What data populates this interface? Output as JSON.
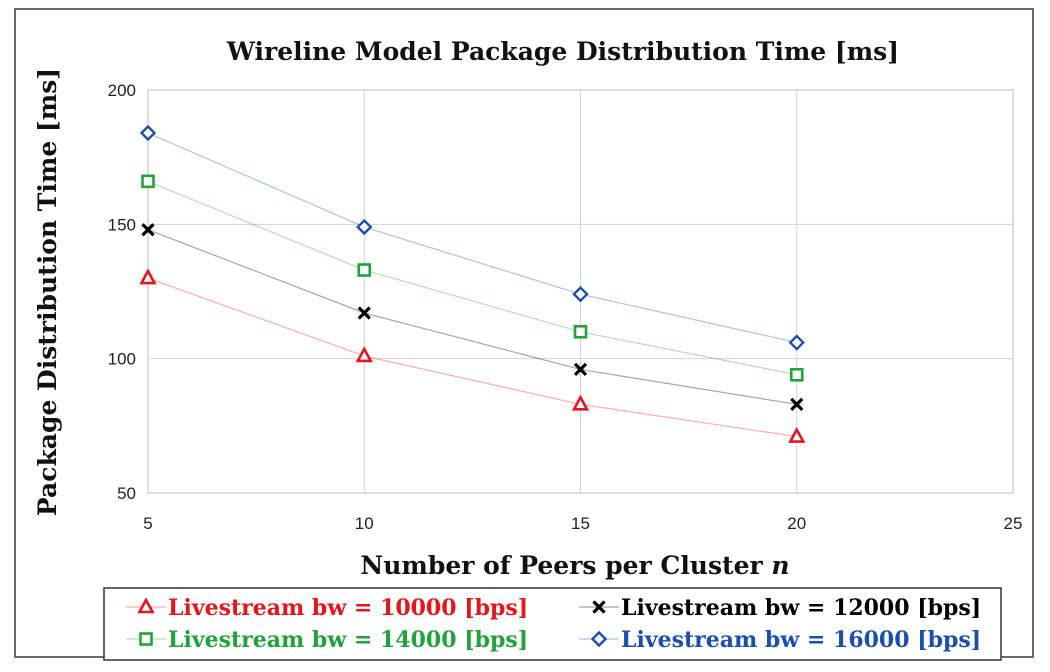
{
  "chart_data": {
    "type": "scatter",
    "title": "Wireline Model Package Distribution Time [ms]",
    "xlabel": "Number of Peers per Cluster",
    "xlabel_var": "n",
    "ylabel": "Package Distribution Time [ms]",
    "xlim": [
      5,
      25
    ],
    "ylim": [
      50,
      200
    ],
    "xticks": [
      5,
      10,
      15,
      20,
      25
    ],
    "yticks": [
      50,
      100,
      150,
      200
    ],
    "grid": true,
    "legend_position": "bottom",
    "x": [
      5,
      10,
      15,
      20
    ],
    "series": [
      {
        "name": "Livestream bw = 10000 [bps]",
        "marker": "triangle",
        "color": "#e8141c",
        "values": [
          130,
          101,
          83,
          71
        ]
      },
      {
        "name": "Livestream bw = 12000 [bps]",
        "marker": "x",
        "color": "#000000",
        "values": [
          148,
          117,
          96,
          83
        ]
      },
      {
        "name": "Livestream bw = 14000 [bps]",
        "marker": "square",
        "color": "#1fa33a",
        "values": [
          166,
          133,
          110,
          94
        ]
      },
      {
        "name": "Livestream bw = 16000 [bps]",
        "marker": "diamond",
        "color": "#1a4fae",
        "values": [
          184,
          149,
          124,
          106
        ]
      }
    ]
  }
}
